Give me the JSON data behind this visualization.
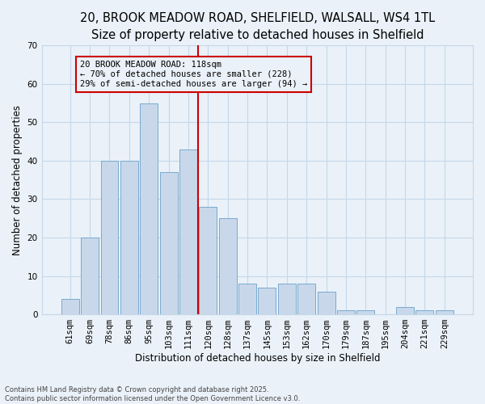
{
  "title1": "20, BROOK MEADOW ROAD, SHELFIELD, WALSALL, WS4 1TL",
  "title2": "Size of property relative to detached houses in Shelfield",
  "xlabel": "Distribution of detached houses by size in Shelfield",
  "ylabel": "Number of detached properties",
  "footer": "Contains HM Land Registry data © Crown copyright and database right 2025.\nContains public sector information licensed under the Open Government Licence v3.0.",
  "bar_labels": [
    "61sqm",
    "69sqm",
    "78sqm",
    "86sqm",
    "95sqm",
    "103sqm",
    "111sqm",
    "120sqm",
    "128sqm",
    "137sqm",
    "145sqm",
    "153sqm",
    "162sqm",
    "170sqm",
    "179sqm",
    "187sqm",
    "195sqm",
    "204sqm",
    "221sqm",
    "229sqm"
  ],
  "bar_values": [
    4,
    20,
    40,
    40,
    55,
    37,
    43,
    28,
    25,
    8,
    7,
    8,
    8,
    6,
    1,
    1,
    0,
    2,
    1,
    1
  ],
  "bar_color": "#c8d8ea",
  "bar_edge_color": "#7aaacf",
  "grid_color": "#c5d8ea",
  "bg_color": "#eaf1f8",
  "vline_color": "#cc0000",
  "annotation_text": "20 BROOK MEADOW ROAD: 118sqm\n← 70% of detached houses are smaller (228)\n29% of semi-detached houses are larger (94) →",
  "annotation_box_facecolor": "#eaf1f8",
  "annotation_box_edgecolor": "#cc0000",
  "ylim": [
    0,
    70
  ],
  "yticks": [
    0,
    10,
    20,
    30,
    40,
    50,
    60,
    70
  ],
  "title1_fontsize": 10.5,
  "title2_fontsize": 9.5,
  "axis_label_fontsize": 8.5,
  "tick_fontsize": 7.5,
  "annotation_fontsize": 7.5,
  "footer_fontsize": 6.0
}
